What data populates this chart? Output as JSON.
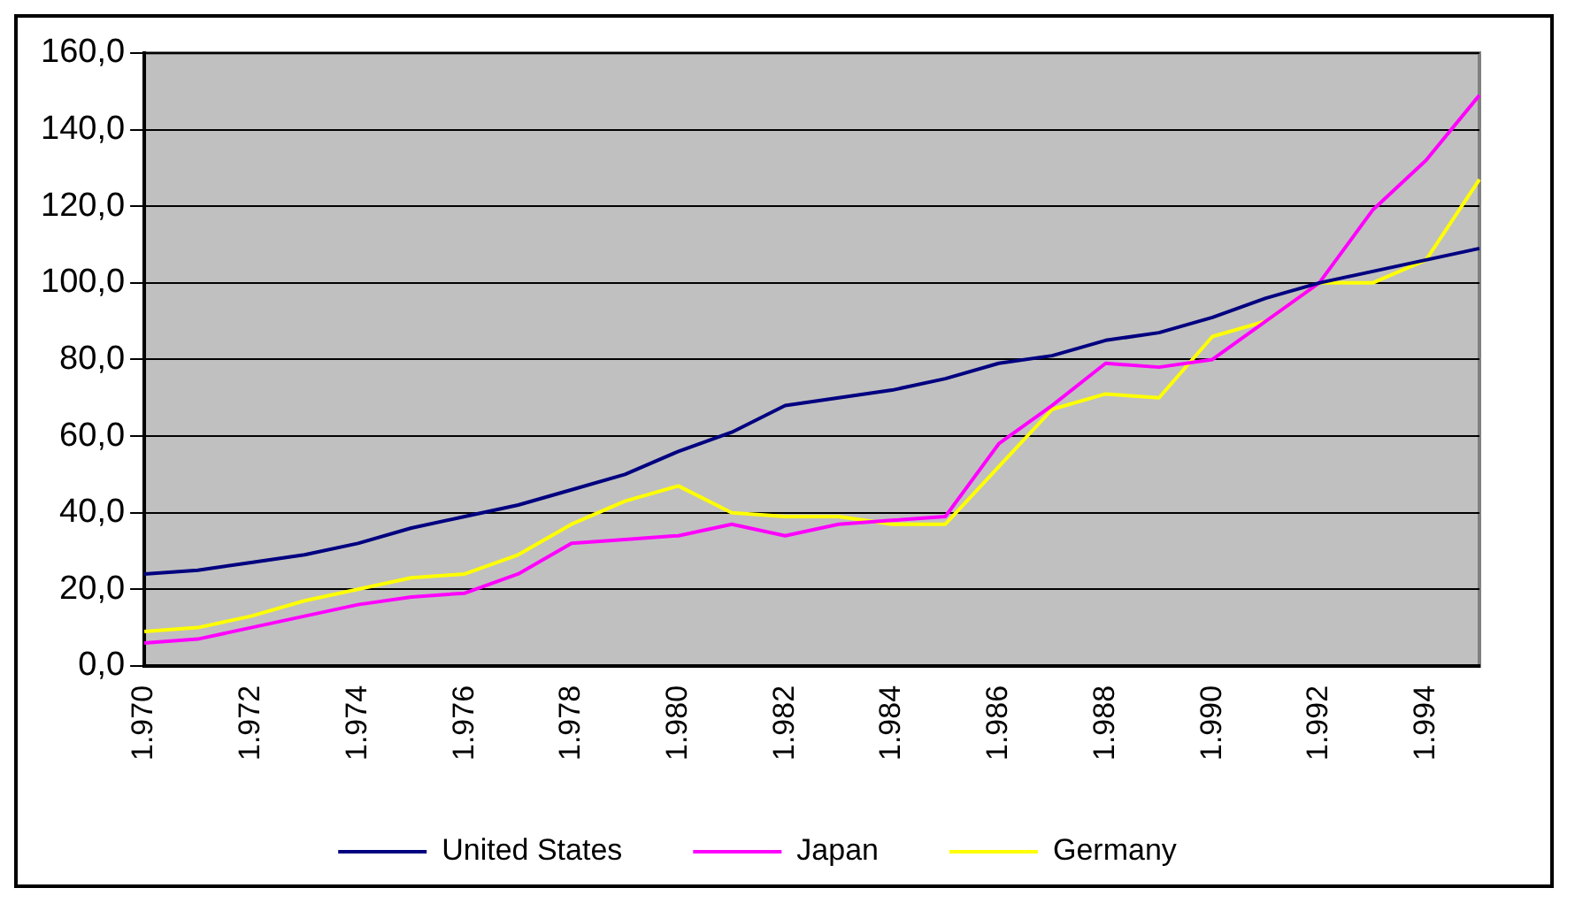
{
  "chart_data": {
    "type": "line",
    "categories": [
      "1.970",
      null,
      "1.972",
      null,
      "1.974",
      null,
      "1.976",
      null,
      "1.978",
      null,
      "1.980",
      null,
      "1.982",
      null,
      "1.984",
      null,
      "1.986",
      null,
      "1.988",
      null,
      "1.990",
      null,
      "1.992",
      null,
      "1.994",
      null
    ],
    "series": [
      {
        "name": "United States",
        "color": "#000080",
        "values": [
          24,
          25,
          27,
          29,
          32,
          36,
          39,
          42,
          46,
          50,
          56,
          61,
          68,
          70,
          72,
          75,
          79,
          81,
          85,
          87,
          91,
          96,
          100,
          103,
          106,
          109
        ]
      },
      {
        "name": "Japan",
        "color": "#ff00ff",
        "values": [
          6,
          7,
          10,
          13,
          16,
          18,
          19,
          24,
          32,
          33,
          34,
          37,
          34,
          37,
          38,
          39,
          58,
          68,
          79,
          78,
          80,
          90,
          100,
          119,
          132,
          149
        ]
      },
      {
        "name": "Germany",
        "color": "#ffff00",
        "values": [
          9,
          10,
          13,
          17,
          20,
          23,
          24,
          29,
          37,
          43,
          47,
          40,
          39,
          39,
          37,
          37,
          52,
          67,
          71,
          70,
          86,
          90,
          100,
          100,
          106,
          127
        ]
      }
    ],
    "ylim": [
      0,
      160
    ],
    "yticks": [
      {
        "value": 0,
        "label": "0,0"
      },
      {
        "value": 20,
        "label": "20,0"
      },
      {
        "value": 40,
        "label": "40,0"
      },
      {
        "value": 60,
        "label": "60,0"
      },
      {
        "value": 80,
        "label": "80,0"
      },
      {
        "value": 100,
        "label": "100,0"
      },
      {
        "value": 120,
        "label": "120,0"
      },
      {
        "value": 140,
        "label": "140,0"
      },
      {
        "value": 160,
        "label": "160,0"
      }
    ],
    "grid": "y",
    "legend": "bottom",
    "marker": "none",
    "line_style": "solid"
  }
}
